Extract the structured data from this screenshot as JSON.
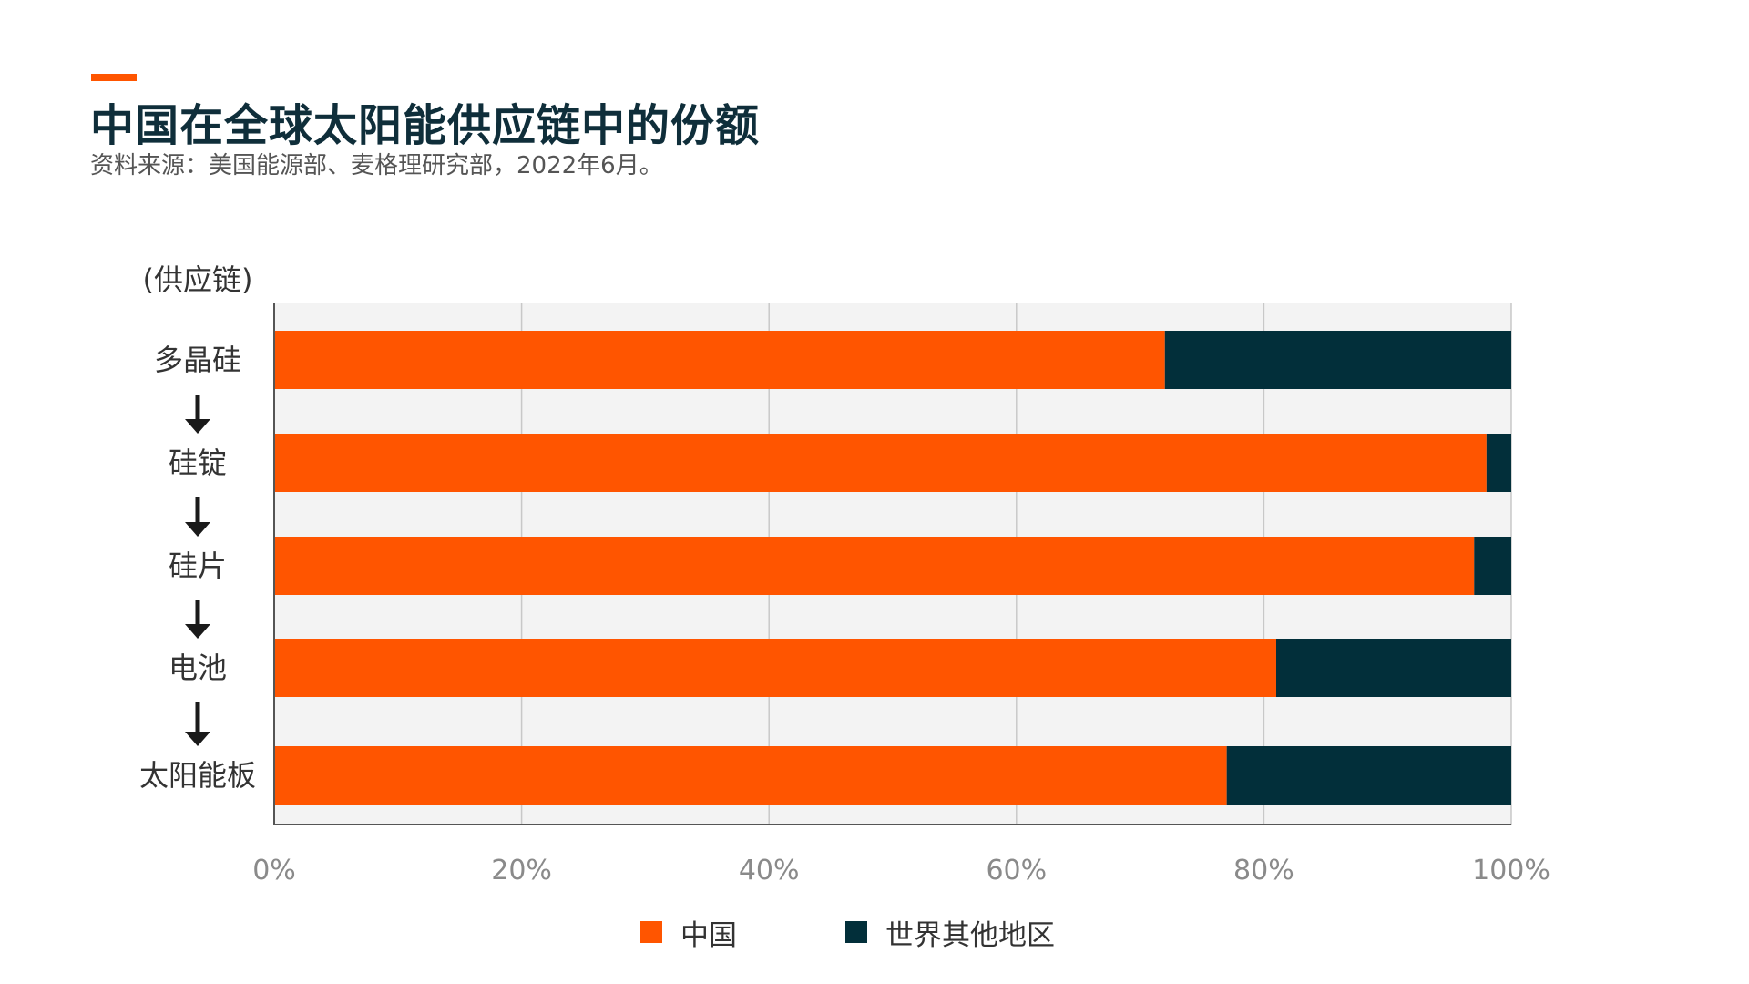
{
  "title": "中国在全球太阳能供应链中的份额",
  "subtitle": "资料来源：美国能源部、麦格理研究部，2022年6月。",
  "colors": {
    "accent": "#ff5500",
    "china": "#ff5500",
    "rest_of_world": "#022f3a",
    "plot_background": "#f3f3f3",
    "gridline": "#c8c8c8",
    "axis_text": "#8a8a8a",
    "label_text": "#333333",
    "arrow": "#1a1a1a"
  },
  "chart_data": {
    "type": "bar",
    "orientation": "horizontal",
    "stacked": true,
    "y_header": "(供应链)",
    "categories": [
      "多晶硅",
      "硅锭",
      "硅片",
      "电池",
      "太阳能板"
    ],
    "series": [
      {
        "name": "中国",
        "values": [
          72,
          98,
          97,
          81,
          77
        ]
      },
      {
        "name": "世界其他地区",
        "values": [
          28,
          2,
          3,
          19,
          23
        ]
      }
    ],
    "xlim": [
      0,
      100
    ],
    "xticks": [
      0,
      20,
      40,
      60,
      80,
      100
    ],
    "xtick_labels": [
      "0%",
      "20%",
      "40%",
      "60%",
      "80%",
      "100%"
    ],
    "xlabel": "",
    "grid": true,
    "flow_arrows_between_categories": true,
    "legend_position": "bottom-center"
  }
}
